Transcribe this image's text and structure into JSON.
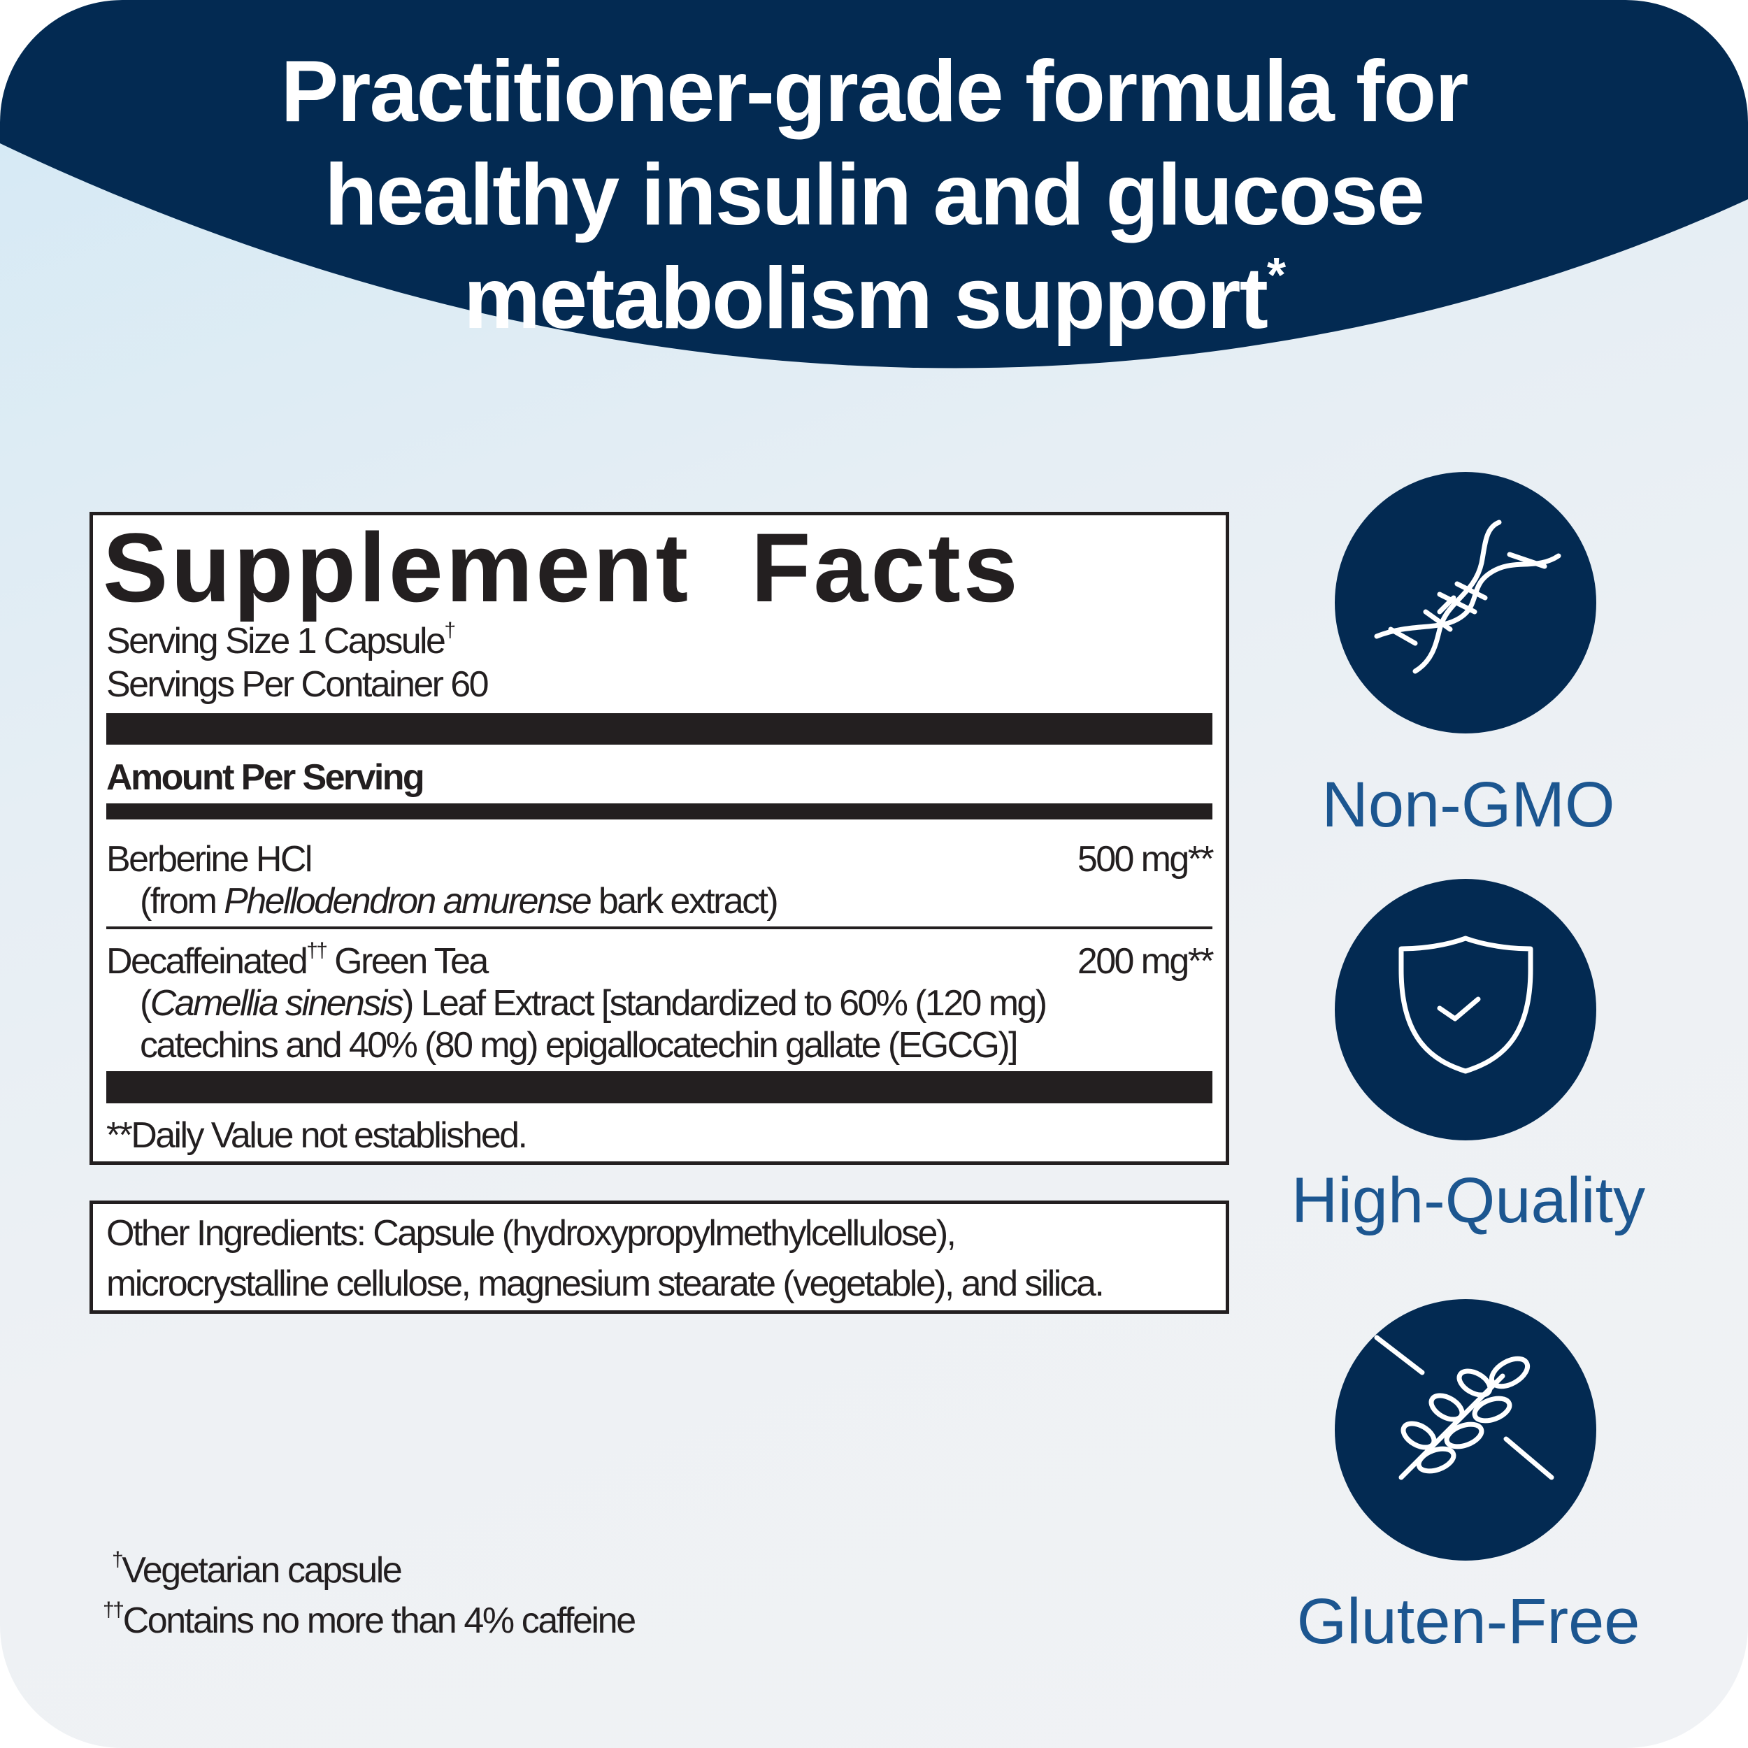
{
  "banner": {
    "lines": [
      "Practitioner-grade formula for",
      "healthy insulin and glucose",
      "metabolism support"
    ],
    "asterisk": "*",
    "color": "#032a52"
  },
  "facts": {
    "heading": "Supplement  Facts",
    "serving_size": "Serving Size 1 Capsule",
    "serving_size_mark": "†",
    "servings_per_container": "Servings Per Container 60",
    "amount_header": "Amount Per Serving",
    "ingredients": [
      {
        "name": "Berberine HCl",
        "amount": "500 mg**",
        "detail_prefix": "(from ",
        "detail_italic": "Phellodendron amurense",
        "detail_suffix": " bark extract)"
      },
      {
        "name": "Decaffeinated",
        "name_mark": "††",
        "name_suffix": " Green Tea",
        "amount": "200 mg**",
        "detail_prefix": "(",
        "detail_italic": "Camellia sinensis",
        "detail_suffix": ") Leaf Extract [standardized to 60% (120 mg)",
        "detail_line2": "catechins and 40% (80 mg) epigallocatechin gallate (EGCG)]"
      }
    ],
    "daily_value_note": "**Daily Value not established."
  },
  "other_ingredients": {
    "line1": "Other Ingredients: Capsule (hydroxypropylmethylcellulose),",
    "line2": "microcrystalline cellulose, magnesium stearate (vegetable), and silica."
  },
  "footnotes": [
    {
      "mark": "†",
      "text": "Vegetarian capsule"
    },
    {
      "mark": "††",
      "text": "Contains no more than 4% caffeine"
    }
  ],
  "badges": [
    {
      "icon": "dna-icon",
      "label": "Non-GMO"
    },
    {
      "icon": "shield-check-icon",
      "label": "High-Quality"
    },
    {
      "icon": "wheat-crossed-icon",
      "label": "Gluten-Free"
    }
  ],
  "colors": {
    "navy": "#032a52",
    "label_blue": "#1c5690",
    "text": "#231f20"
  }
}
